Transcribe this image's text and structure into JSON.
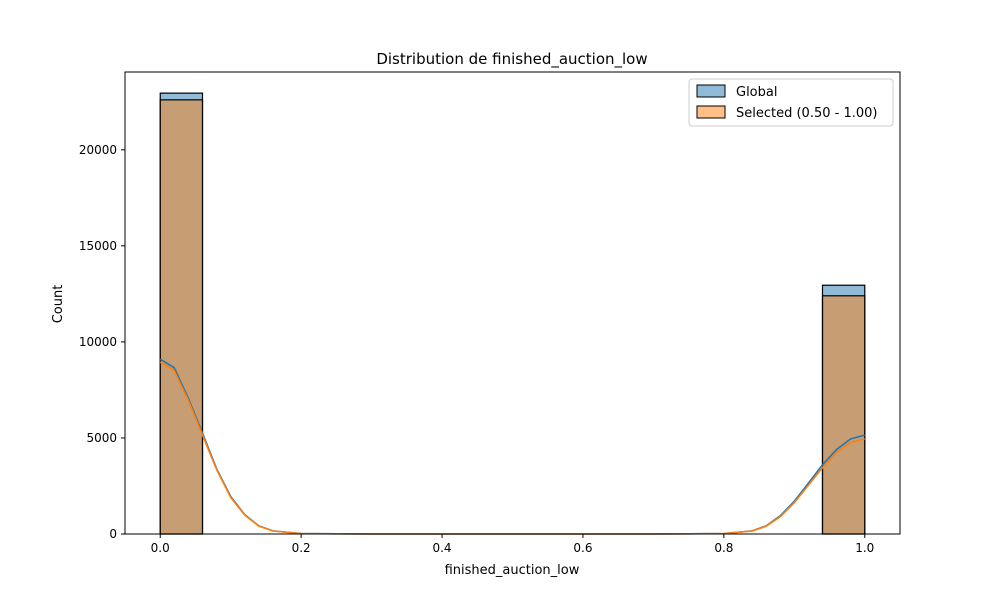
{
  "chart_data": {
    "type": "histogram",
    "title": "Distribution de finished_auction_low",
    "xlabel": "finished_auction_low",
    "ylabel": "Count",
    "xlim": [
      -0.05,
      1.05
    ],
    "ylim": [
      0,
      24050
    ],
    "xticks": [
      0.0,
      0.2,
      0.4,
      0.6,
      0.8,
      1.0
    ],
    "xtick_labels": [
      "0.0",
      "0.2",
      "0.4",
      "0.6",
      "0.8",
      "1.0"
    ],
    "yticks": [
      0,
      5000,
      10000,
      15000,
      20000
    ],
    "ytick_labels": [
      "0",
      "5000",
      "10000",
      "15000",
      "20000"
    ],
    "grid": false,
    "legend_position": "top-right",
    "series": [
      {
        "name": "Global",
        "color": "#1f77b4",
        "bars": [
          {
            "x0": 0.0,
            "x1": 0.06,
            "count": 22950
          },
          {
            "x0": 0.94,
            "x1": 1.0,
            "count": 12950
          }
        ],
        "kde": [
          [
            0.0,
            9100
          ],
          [
            0.02,
            8650
          ],
          [
            0.04,
            7050
          ],
          [
            0.06,
            5250
          ],
          [
            0.08,
            3400
          ],
          [
            0.1,
            1950
          ],
          [
            0.12,
            1000
          ],
          [
            0.14,
            420
          ],
          [
            0.16,
            160
          ],
          [
            0.2,
            20
          ],
          [
            0.3,
            0
          ],
          [
            0.5,
            0
          ],
          [
            0.7,
            0
          ],
          [
            0.8,
            20
          ],
          [
            0.84,
            160
          ],
          [
            0.86,
            420
          ],
          [
            0.88,
            950
          ],
          [
            0.9,
            1700
          ],
          [
            0.92,
            2650
          ],
          [
            0.94,
            3600
          ],
          [
            0.96,
            4400
          ],
          [
            0.98,
            4950
          ],
          [
            1.0,
            5150
          ]
        ]
      },
      {
        "name": "Selected (0.50 - 1.00)",
        "color": "#ff7f0e",
        "bars": [
          {
            "x0": 0.0,
            "x1": 0.06,
            "count": 22600
          },
          {
            "x0": 0.94,
            "x1": 1.0,
            "count": 12400
          }
        ],
        "kde": [
          [
            0.0,
            8950
          ],
          [
            0.02,
            8500
          ],
          [
            0.04,
            6950
          ],
          [
            0.06,
            5150
          ],
          [
            0.08,
            3350
          ],
          [
            0.1,
            1900
          ],
          [
            0.12,
            980
          ],
          [
            0.14,
            410
          ],
          [
            0.16,
            155
          ],
          [
            0.2,
            20
          ],
          [
            0.3,
            0
          ],
          [
            0.5,
            0
          ],
          [
            0.7,
            0
          ],
          [
            0.8,
            20
          ],
          [
            0.84,
            150
          ],
          [
            0.86,
            400
          ],
          [
            0.88,
            900
          ],
          [
            0.9,
            1630
          ],
          [
            0.92,
            2540
          ],
          [
            0.94,
            3450
          ],
          [
            0.96,
            4250
          ],
          [
            0.98,
            4780
          ],
          [
            1.0,
            4950
          ]
        ]
      }
    ]
  }
}
